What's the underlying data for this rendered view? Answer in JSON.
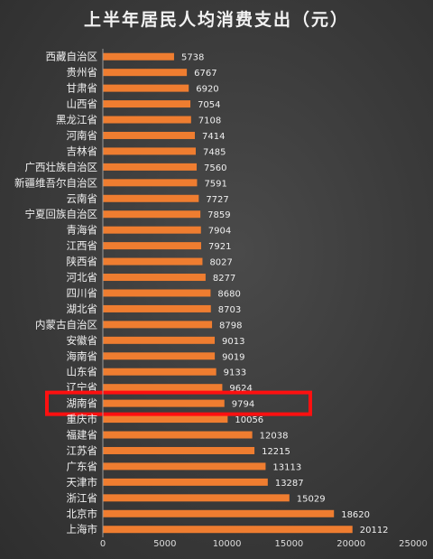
{
  "chart_data": {
    "type": "bar",
    "orientation": "horizontal",
    "title": "上半年居民人均消费支出（元）",
    "categories": [
      "西藏自治区",
      "贵州省",
      "甘肃省",
      "山西省",
      "黑龙江省",
      "河南省",
      "吉林省",
      "广西壮族自治区",
      "新疆维吾尔自治区",
      "云南省",
      "宁夏回族自治区",
      "青海省",
      "江西省",
      "陕西省",
      "河北省",
      "四川省",
      "湖北省",
      "内蒙古自治区",
      "安徽省",
      "海南省",
      "山东省",
      "辽宁省",
      "湖南省",
      "重庆市",
      "福建省",
      "江苏省",
      "广东省",
      "天津市",
      "浙江省",
      "北京市",
      "上海市"
    ],
    "values": [
      5738,
      6767,
      6920,
      7054,
      7108,
      7414,
      7485,
      7560,
      7591,
      7727,
      7859,
      7904,
      7921,
      8027,
      8277,
      8680,
      8703,
      8798,
      9013,
      9019,
      9133,
      9624,
      9794,
      10056,
      12038,
      12215,
      13113,
      13287,
      15029,
      18620,
      20112
    ],
    "xlim": [
      0,
      25000
    ],
    "xticks": [
      0,
      5000,
      10000,
      15000,
      20000,
      25000
    ],
    "xtick_labels": [
      "0",
      "5000",
      "10000",
      "15000",
      "20000",
      "25000"
    ],
    "highlight": "湖南省",
    "highlight_color": "#ff1010",
    "bar_color": "#ef7d30",
    "grid": false
  }
}
